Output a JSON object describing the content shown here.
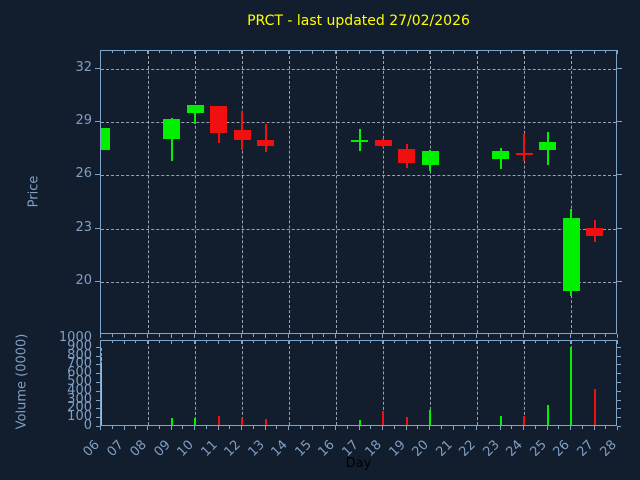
{
  "title": "PRCT - last updated 27/02/2026",
  "colors": {
    "background": "#121d2d",
    "title": "#ffff00",
    "axis": "#7ea6cb",
    "tick_label": "#7f9fc4",
    "grid": "#b4bac2",
    "up": "#00f000",
    "down": "#f01010",
    "xlabel_text": "#000000"
  },
  "chart_data": {
    "type": "candlestick",
    "title": "PRCT - last updated 27/02/2026",
    "xlabel": "Day",
    "xlim": [
      6,
      28
    ],
    "xtick_labels": [
      "06",
      "07",
      "08",
      "09",
      "10",
      "11",
      "12",
      "13",
      "14",
      "15",
      "16",
      "17",
      "18",
      "19",
      "20",
      "21",
      "22",
      "23",
      "24",
      "25",
      "26",
      "27",
      "28"
    ],
    "grid_x_days": [
      6,
      8,
      10,
      12,
      14,
      16,
      18,
      20,
      22,
      24,
      26,
      28
    ],
    "panels": [
      {
        "name": "price",
        "ylabel": "Price",
        "ylim": [
          17,
          33
        ],
        "yticks": [
          20,
          23,
          26,
          29,
          32
        ],
        "grid": true
      },
      {
        "name": "volume",
        "ylabel": "Volume (0000)",
        "ylim": [
          0,
          977
        ],
        "yticks": [
          0,
          100,
          200,
          300,
          400,
          500,
          600,
          700,
          800,
          900,
          1000
        ],
        "grid": true
      }
    ],
    "candles": [
      {
        "day": 6,
        "open": 27.4,
        "high": 28.65,
        "low": 27.4,
        "close": 28.65,
        "direction": "up",
        "volume": null
      },
      {
        "day": 9,
        "open": 28.05,
        "high": 29.2,
        "low": 26.8,
        "close": 29.15,
        "direction": "up",
        "volume": 100
      },
      {
        "day": 10,
        "open": 29.5,
        "high": 29.95,
        "low": 28.9,
        "close": 29.95,
        "direction": "up",
        "volume": 100
      },
      {
        "day": 11,
        "open": 29.9,
        "high": 29.9,
        "low": 27.8,
        "close": 28.4,
        "direction": "down",
        "volume": 120
      },
      {
        "day": 12,
        "open": 28.55,
        "high": 29.6,
        "low": 27.4,
        "close": 28.0,
        "direction": "down",
        "volume": 100
      },
      {
        "day": 13,
        "open": 28.0,
        "high": 28.9,
        "low": 27.3,
        "close": 27.65,
        "direction": "down",
        "volume": 90
      },
      {
        "day": 17,
        "open": 27.95,
        "high": 28.6,
        "low": 27.35,
        "close": 28.0,
        "direction": "up",
        "volume": 85
      },
      {
        "day": 18,
        "open": 28.0,
        "high": 28.05,
        "low": 27.6,
        "close": 27.65,
        "direction": "down",
        "volume": 180
      },
      {
        "day": 19,
        "open": 27.5,
        "high": 27.75,
        "low": 26.4,
        "close": 26.7,
        "direction": "down",
        "volume": 110
      },
      {
        "day": 20,
        "open": 26.6,
        "high": 27.45,
        "low": 26.25,
        "close": 27.35,
        "direction": "up",
        "volume": 190
      },
      {
        "day": 23,
        "open": 26.9,
        "high": 27.55,
        "low": 26.35,
        "close": 27.35,
        "direction": "up",
        "volume": 130
      },
      {
        "day": 24,
        "open": 27.25,
        "high": 28.3,
        "low": 26.8,
        "close": 27.2,
        "direction": "down",
        "volume": 130
      },
      {
        "day": 25,
        "open": 27.45,
        "high": 28.45,
        "low": 26.55,
        "close": 27.85,
        "direction": "up",
        "volume": 255
      },
      {
        "day": 26,
        "open": 19.5,
        "high": 24.1,
        "low": 19.2,
        "close": 23.6,
        "direction": "up",
        "volume": 910
      },
      {
        "day": 27,
        "open": 23.05,
        "high": 23.5,
        "low": 22.25,
        "close": 22.6,
        "direction": "down",
        "volume": 430
      }
    ]
  }
}
